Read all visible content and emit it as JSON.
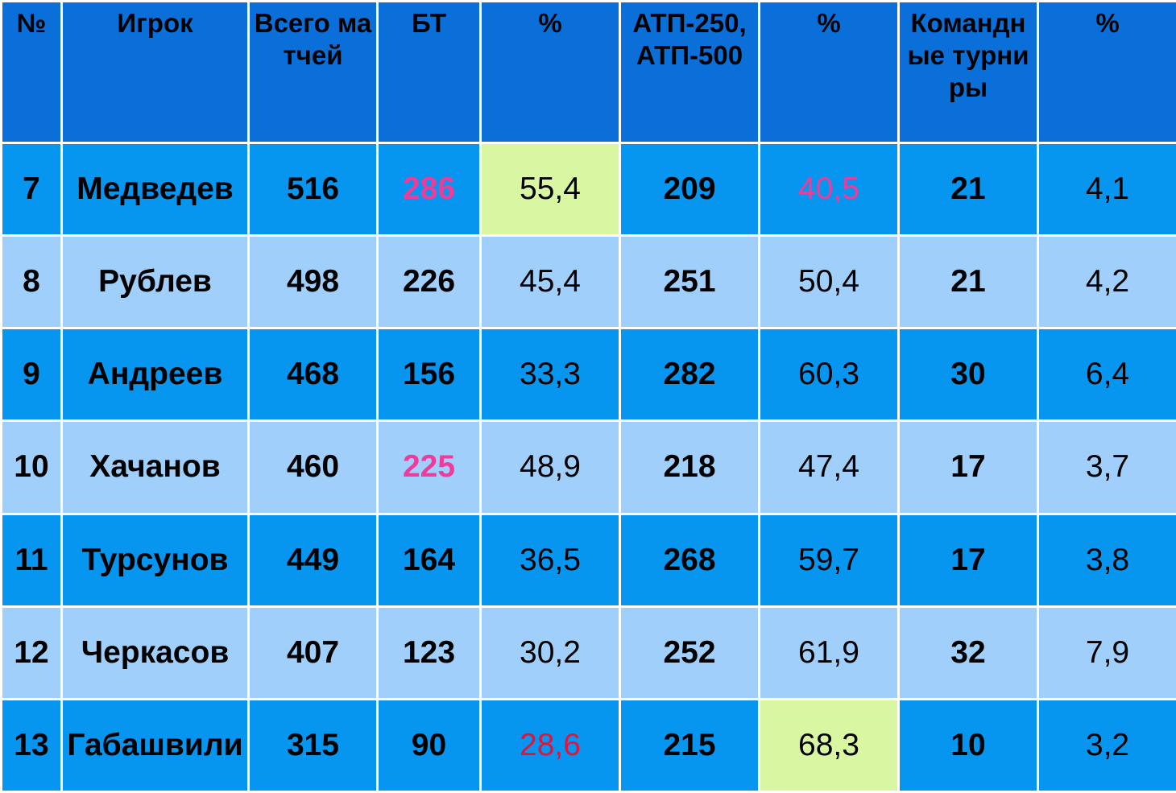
{
  "table": {
    "header": [
      "№",
      "Игрок",
      "Всего матчей",
      "БТ",
      "%",
      "АТП-250, АТП-500",
      "%",
      "Командные турниры",
      "%"
    ],
    "rows": [
      [
        "7",
        "Медведев",
        "516",
        "286",
        "55,4",
        "209",
        "40,5",
        "21",
        "4,1"
      ],
      [
        "8",
        "Рублев",
        "498",
        "226",
        "45,4",
        "251",
        "50,4",
        "21",
        "4,2"
      ],
      [
        "9",
        "Андреев",
        "468",
        "156",
        "33,3",
        "282",
        "60,3",
        "30",
        "6,4"
      ],
      [
        "10",
        "Хачанов",
        "460",
        "225",
        "48,9",
        "218",
        "47,4",
        "17",
        "3,7"
      ],
      [
        "11",
        "Турсунов",
        "449",
        "164",
        "36,5",
        "268",
        "59,7",
        "17",
        "3,8"
      ],
      [
        "12",
        "Черкасов",
        "407",
        "123",
        "30,2",
        "252",
        "61,9",
        "32",
        "7,9"
      ],
      [
        "13",
        "Габашвили",
        "315",
        "90",
        "28,6",
        "215",
        "68,3",
        "10",
        "3,2"
      ]
    ]
  }
}
